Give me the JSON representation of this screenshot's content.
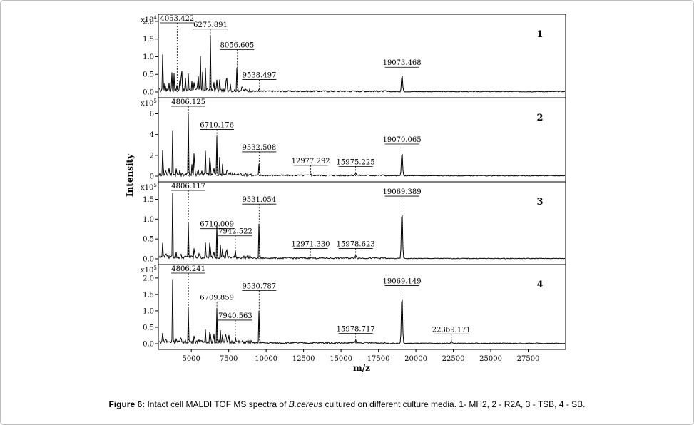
{
  "caption": {
    "label": "Figure  6:",
    "text_before": " Intact cell MALDI TOF MS spectra of ",
    "species": "B.cereus",
    "text_after": " cultured on different culture media. 1- MH2, 2 - R2A, 3 - TSB, 4 - SB."
  },
  "chart_data": {
    "type": "line",
    "xlabel": "m/z",
    "ylabel": "Intensity",
    "xlim": [
      2800,
      30000
    ],
    "x_ticks": [
      5000,
      7500,
      10000,
      12500,
      15000,
      17500,
      20000,
      22500,
      25000,
      27500
    ],
    "panels": [
      {
        "number": "1",
        "scale_label": "x10",
        "scale_exp": "4",
        "ylim": [
          0,
          2.1
        ],
        "y_ticks": [
          0.0,
          0.5,
          1.0,
          1.5,
          2.0
        ],
        "y_tick_labels": [
          "0.0",
          "0.5",
          "1.0",
          "1.5",
          "2.0"
        ],
        "peak_labels": [
          {
            "mz": 4053.422,
            "text": "4053.422",
            "height": 2.02
          },
          {
            "mz": 6275.891,
            "text": "6275.891",
            "height": 1.58
          },
          {
            "mz": 8056.605,
            "text": "8056.605",
            "height": 1.0
          },
          {
            "mz": 9538.497,
            "text": "9538.497",
            "height": 0.15
          },
          {
            "mz": 19073.468,
            "text": "19073.468",
            "height": 0.5
          }
        ],
        "peaks": [
          [
            3100,
            1.45
          ],
          [
            3250,
            0.4
          ],
          [
            3500,
            0.3
          ],
          [
            3700,
            0.55
          ],
          [
            3850,
            0.45
          ],
          [
            4053,
            0.25
          ],
          [
            4250,
            0.55
          ],
          [
            4350,
            1.2
          ],
          [
            4600,
            0.4
          ],
          [
            4806,
            0.5
          ],
          [
            5050,
            0.35
          ],
          [
            5200,
            0.45
          ],
          [
            5450,
            0.6
          ],
          [
            5600,
            1.15
          ],
          [
            5750,
            0.55
          ],
          [
            5950,
            0.65
          ],
          [
            6276,
            1.58
          ],
          [
            6500,
            0.35
          ],
          [
            6700,
            0.35
          ],
          [
            6900,
            0.3
          ],
          [
            7350,
            0.75
          ],
          [
            7600,
            0.25
          ],
          [
            8057,
            0.95
          ],
          [
            8400,
            0.15
          ],
          [
            9538,
            0.15
          ],
          [
            19073,
            0.5
          ]
        ]
      },
      {
        "number": "2",
        "scale_label": "x10",
        "scale_exp": "5",
        "ylim": [
          0,
          7.2
        ],
        "y_ticks": [
          0,
          2,
          4,
          6
        ],
        "y_tick_labels": [
          "0",
          "2",
          "4",
          "6"
        ],
        "peak_labels": [
          {
            "mz": 4806.125,
            "text": "4806.125",
            "height": 6.1
          },
          {
            "mz": 6710.176,
            "text": "6710.176",
            "height": 3.8
          },
          {
            "mz": 9532.508,
            "text": "9532.508",
            "height": 1.65
          },
          {
            "mz": 12977.292,
            "text": "12977.292",
            "height": 0.35
          },
          {
            "mz": 15975.225,
            "text": "15975.225",
            "height": 0.25
          },
          {
            "mz": 19070.065,
            "text": "19070.065",
            "height": 2.4
          }
        ],
        "peaks": [
          [
            3100,
            3.4
          ],
          [
            3300,
            0.8
          ],
          [
            3500,
            1.0
          ],
          [
            3750,
            4.3
          ],
          [
            4000,
            0.6
          ],
          [
            4250,
            0.5
          ],
          [
            4806,
            6.0
          ],
          [
            5050,
            1.2
          ],
          [
            5200,
            3.5
          ],
          [
            5450,
            1.0
          ],
          [
            5700,
            0.5
          ],
          [
            5950,
            2.3
          ],
          [
            6250,
            3.1
          ],
          [
            6500,
            1.0
          ],
          [
            6710,
            3.8
          ],
          [
            6900,
            1.6
          ],
          [
            7100,
            1.3
          ],
          [
            7400,
            0.9
          ],
          [
            7600,
            0.3
          ],
          [
            9533,
            1.6
          ],
          [
            12977,
            0.3
          ],
          [
            15975,
            0.25
          ],
          [
            19070,
            2.4
          ]
        ]
      },
      {
        "number": "3",
        "scale_label": "x10",
        "scale_exp": "5",
        "ylim": [
          0,
          1.85
        ],
        "y_ticks": [
          0.0,
          0.5,
          1.0,
          1.5
        ],
        "y_tick_labels": [
          "0.0",
          "0.5",
          "1.0",
          "1.5"
        ],
        "peak_labels": [
          {
            "mz": 4806.117,
            "text": "4806.117",
            "height": 1.67
          },
          {
            "mz": 6710.009,
            "text": "6710.009",
            "height": 0.58
          },
          {
            "mz": 7942.522,
            "text": "7942.522",
            "height": 0.4
          },
          {
            "mz": 9531.054,
            "text": "9531.054",
            "height": 1.2
          },
          {
            "mz": 12971.33,
            "text": "12971.330",
            "height": 0.08
          },
          {
            "mz": 15978.623,
            "text": "15978.623",
            "height": 0.08
          },
          {
            "mz": 19069.389,
            "text": "19069.389",
            "height": 1.4
          }
        ],
        "peaks": [
          [
            3100,
            0.55
          ],
          [
            3300,
            0.25
          ],
          [
            3750,
            1.65
          ],
          [
            4000,
            0.12
          ],
          [
            4300,
            0.1
          ],
          [
            4806,
            0.95
          ],
          [
            5200,
            0.35
          ],
          [
            5500,
            0.15
          ],
          [
            5950,
            0.35
          ],
          [
            6250,
            0.65
          ],
          [
            6500,
            0.25
          ],
          [
            6710,
            0.85
          ],
          [
            6950,
            0.3
          ],
          [
            7100,
            0.3
          ],
          [
            7350,
            0.35
          ],
          [
            7942,
            0.15
          ],
          [
            9531,
            1.2
          ],
          [
            12971,
            0.06
          ],
          [
            15979,
            0.08
          ],
          [
            19069,
            1.28
          ]
        ]
      },
      {
        "number": "4",
        "scale_label": "x10",
        "scale_exp": "5",
        "ylim": [
          0,
          2.3
        ],
        "y_ticks": [
          0.0,
          0.5,
          1.0,
          1.5,
          2.0
        ],
        "y_tick_labels": [
          "0.0",
          "0.5",
          "1.0",
          "1.5",
          "2.0"
        ],
        "peak_labels": [
          {
            "mz": 4806.241,
            "text": "4806.241",
            "height": 2.03
          },
          {
            "mz": 6709.859,
            "text": "6709.859",
            "height": 1.05
          },
          {
            "mz": 7940.563,
            "text": "7940.563",
            "height": 0.5
          },
          {
            "mz": 9530.787,
            "text": "9530.787",
            "height": 1.4
          },
          {
            "mz": 15978.717,
            "text": "15978.717",
            "height": 0.1
          },
          {
            "mz": 19069.149,
            "text": "19069.149",
            "height": 1.55
          },
          {
            "mz": 22369.171,
            "text": "22369.171",
            "height": 0.08
          }
        ],
        "peaks": [
          [
            3100,
            0.45
          ],
          [
            3300,
            0.2
          ],
          [
            3750,
            1.95
          ],
          [
            4000,
            0.15
          ],
          [
            4300,
            0.2
          ],
          [
            4806,
            1.05
          ],
          [
            5200,
            0.4
          ],
          [
            5500,
            0.15
          ],
          [
            5950,
            0.45
          ],
          [
            6250,
            0.7
          ],
          [
            6500,
            0.3
          ],
          [
            6710,
            1.05
          ],
          [
            6950,
            0.4
          ],
          [
            7100,
            0.35
          ],
          [
            7300,
            0.45
          ],
          [
            7500,
            0.25
          ],
          [
            7941,
            0.2
          ],
          [
            9531,
            1.38
          ],
          [
            15979,
            0.07
          ],
          [
            19069,
            1.55
          ],
          [
            22369,
            0.06
          ]
        ]
      }
    ]
  }
}
